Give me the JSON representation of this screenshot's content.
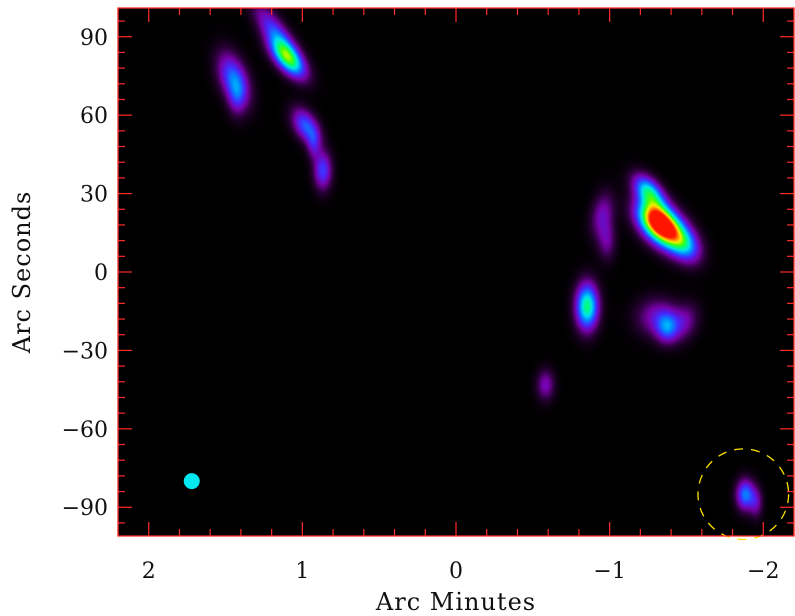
{
  "chart_data": {
    "type": "heatmap",
    "title": "",
    "xlabel": "Arc Minutes",
    "ylabel": "Arc Seconds",
    "xlim": [
      2.2,
      -2.2
    ],
    "ylim": [
      -101,
      101
    ],
    "x_ticks": [
      2,
      1,
      0,
      -1,
      -2
    ],
    "x_tick_labels": [
      "2",
      "1",
      "0",
      "−1",
      "−2"
    ],
    "y_ticks": [
      90,
      60,
      30,
      0,
      -30,
      -60,
      -90
    ],
    "y_tick_labels": [
      "90",
      "60",
      "30",
      "0",
      "−30",
      "−60",
      "−90"
    ],
    "colormap": "rainbow (black → purple → blue → cyan → green → yellow → red)",
    "background": "#000000",
    "frame_color": "#ff2a2a",
    "sources": [
      {
        "x": 1.1,
        "y": 82,
        "peak": 0.62,
        "sx": 0.05,
        "sy": 6,
        "rot": -40
      },
      {
        "x": 1.17,
        "y": 91,
        "peak": 0.32,
        "sx": 0.05,
        "sy": 9,
        "rot": -35
      },
      {
        "x": 1.45,
        "y": 74,
        "peak": 0.38,
        "sx": 0.06,
        "sy": 7,
        "rot": -20
      },
      {
        "x": 1.43,
        "y": 67,
        "peak": 0.16,
        "sx": 0.04,
        "sy": 5,
        "rot": 0
      },
      {
        "x": 0.98,
        "y": 56,
        "peak": 0.36,
        "sx": 0.05,
        "sy": 5,
        "rot": -30
      },
      {
        "x": 0.93,
        "y": 49,
        "peak": 0.18,
        "sx": 0.03,
        "sy": 4,
        "rot": 0
      },
      {
        "x": 0.87,
        "y": 39,
        "peak": 0.32,
        "sx": 0.04,
        "sy": 5,
        "rot": 0
      },
      {
        "x": -1.25,
        "y": 31,
        "peak": 0.52,
        "sx": 0.05,
        "sy": 5,
        "rot": -40
      },
      {
        "x": -1.3,
        "y": 20,
        "peak": 0.95,
        "sx": 0.07,
        "sy": 6,
        "rot": -40
      },
      {
        "x": -1.4,
        "y": 15,
        "peak": 0.62,
        "sx": 0.07,
        "sy": 6,
        "rot": -40
      },
      {
        "x": -1.5,
        "y": 10,
        "peak": 0.28,
        "sx": 0.06,
        "sy": 5,
        "rot": -30
      },
      {
        "x": -0.95,
        "y": 22,
        "peak": 0.2,
        "sx": 0.05,
        "sy": 6,
        "rot": 10
      },
      {
        "x": -0.98,
        "y": 12,
        "peak": 0.16,
        "sx": 0.04,
        "sy": 5,
        "rot": 0
      },
      {
        "x": -0.85,
        "y": -13,
        "peak": 0.62,
        "sx": 0.05,
        "sy": 6,
        "rot": 0
      },
      {
        "x": -1.3,
        "y": -17,
        "peak": 0.2,
        "sx": 0.09,
        "sy": 5,
        "rot": -15
      },
      {
        "x": -1.37,
        "y": -21,
        "peak": 0.32,
        "sx": 0.05,
        "sy": 4,
        "rot": 0
      },
      {
        "x": -1.48,
        "y": -19,
        "peak": 0.18,
        "sx": 0.06,
        "sy": 5,
        "rot": 20
      },
      {
        "x": -0.58,
        "y": -43,
        "peak": 0.2,
        "sx": 0.04,
        "sy": 4,
        "rot": 0
      },
      {
        "x": -1.88,
        "y": -85,
        "peak": 0.4,
        "sx": 0.04,
        "sy": 4,
        "rot": 0
      },
      {
        "x": -1.95,
        "y": -88,
        "peak": 0.18,
        "sx": 0.03,
        "sy": 4,
        "rot": 0
      }
    ],
    "annotations": {
      "beam": {
        "x": 1.72,
        "y": -80,
        "color": "#00e8f0"
      },
      "field_circle": {
        "x": -1.87,
        "y": -85,
        "radius_arcsec": 17,
        "color": "#ffe000",
        "style": "dashed"
      }
    }
  }
}
